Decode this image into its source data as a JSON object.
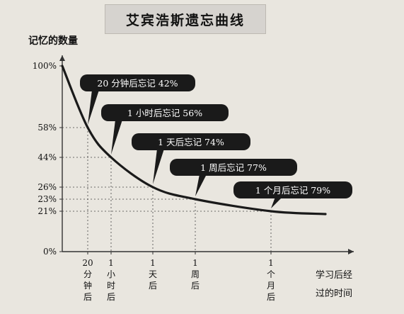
{
  "chart_data": {
    "type": "line",
    "title": "艾宾浩斯遗忘曲线",
    "ylabel": "记忆的数量",
    "xlabel_lines": [
      "学习后经",
      "过的时间"
    ],
    "y_ticks": [
      "100%",
      "58%",
      "44%",
      "26%",
      "23%",
      "21%",
      "0%"
    ],
    "x_tick_labels": [
      "20分钟后",
      "1小时后",
      "1天后",
      "1周后",
      "1个月后"
    ],
    "points": [
      {
        "x": "0",
        "y": 100
      },
      {
        "x": "20分钟后",
        "y": 58
      },
      {
        "x": "1小时后",
        "y": 44
      },
      {
        "x": "1天后",
        "y": 26
      },
      {
        "x": "1周后",
        "y": 23
      },
      {
        "x": "1个月后",
        "y": 21
      }
    ],
    "annotations": [
      "20 分钟后忘记 42%",
      "1 小时后忘记 56%",
      "1 天后忘记 74%",
      "1 周后忘记 77%",
      "1 个月后忘记 79%"
    ],
    "grid": "dotted guides to each point",
    "ylim": [
      0,
      100
    ]
  },
  "colors": {
    "background": "#e9e6df",
    "curve": "#1a1a1a",
    "callout": "#1a1a1a",
    "callout_text": "#ffffff"
  }
}
